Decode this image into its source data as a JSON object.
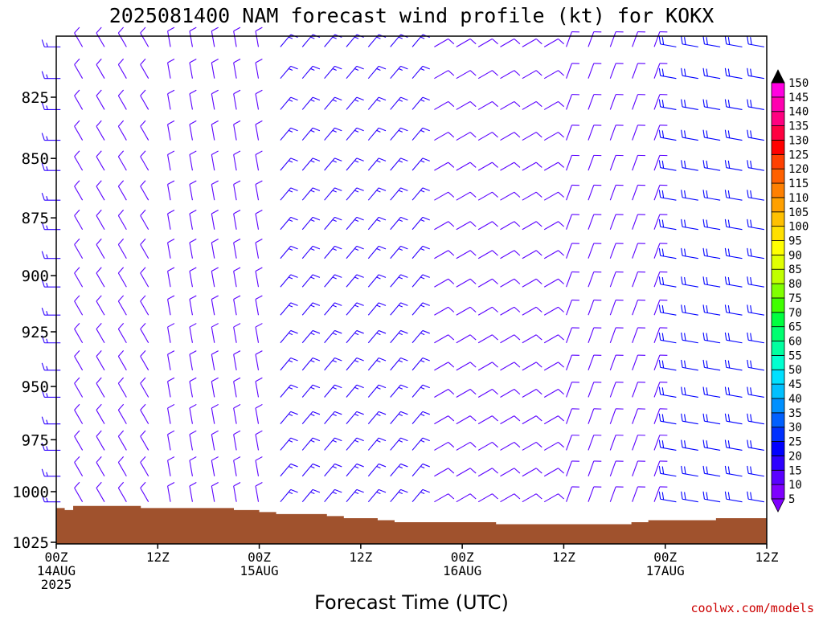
{
  "chart_data": {
    "type": "wind-barb-time-height",
    "title": "2025081400 NAM forecast wind profile (kt) for KOKX",
    "xlabel": "Forecast Time (UTC)",
    "ylabel": "",
    "x_ticks": [
      {
        "hour": 0,
        "line1": "00Z",
        "line2": "14AUG",
        "line3": "2025"
      },
      {
        "hour": 12,
        "line1": "12Z",
        "line2": "",
        "line3": ""
      },
      {
        "hour": 24,
        "line1": "00Z",
        "line2": "15AUG",
        "line3": ""
      },
      {
        "hour": 36,
        "line1": "12Z",
        "line2": "",
        "line3": ""
      },
      {
        "hour": 48,
        "line1": "00Z",
        "line2": "16AUG",
        "line3": ""
      },
      {
        "hour": 60,
        "line1": "12Z",
        "line2": "",
        "line3": ""
      },
      {
        "hour": 72,
        "line1": "00Z",
        "line2": "17AUG",
        "line3": ""
      },
      {
        "hour": 84,
        "line1": "12Z",
        "line2": "",
        "line3": ""
      }
    ],
    "xlim": [
      0,
      84
    ],
    "y_ticks": [
      825,
      850,
      875,
      900,
      925,
      950,
      975,
      1000,
      1025
    ],
    "ylim_hpa": [
      1025,
      800
    ],
    "log_pressure_axis": true,
    "grid": false,
    "colorbar": {
      "units": "kt",
      "levels": [
        5,
        10,
        15,
        20,
        25,
        30,
        35,
        40,
        45,
        50,
        55,
        60,
        65,
        70,
        75,
        80,
        85,
        90,
        95,
        100,
        105,
        110,
        115,
        120,
        125,
        130,
        135,
        140,
        145,
        150
      ],
      "colors": [
        "#7f00ff",
        "#5a00ff",
        "#2d00ff",
        "#0000ff",
        "#0030ff",
        "#0060ff",
        "#0090ff",
        "#00c0ff",
        "#00e0ff",
        "#00ffd0",
        "#00ffa0",
        "#00ff70",
        "#00ff40",
        "#40ff00",
        "#80ff00",
        "#c0ff00",
        "#e0ff00",
        "#ffff00",
        "#ffe000",
        "#ffc000",
        "#ffa000",
        "#ff8000",
        "#ff6000",
        "#ff4000",
        "#ff0000",
        "#ff0040",
        "#ff0080",
        "#ff00b0",
        "#ff00e0",
        "#ff40ff"
      ]
    },
    "ground_color": "#a0522d",
    "surface_pressure": [
      {
        "hour": 0,
        "p": 1008
      },
      {
        "hour": 1,
        "p": 1009
      },
      {
        "hour": 2,
        "p": 1007
      },
      {
        "hour": 8,
        "p": 1007
      },
      {
        "hour": 10,
        "p": 1008
      },
      {
        "hour": 11,
        "p": 1008
      },
      {
        "hour": 14,
        "p": 1008
      },
      {
        "hour": 16,
        "p": 1008
      },
      {
        "hour": 20,
        "p": 1008
      },
      {
        "hour": 21,
        "p": 1009
      },
      {
        "hour": 24,
        "p": 1010
      },
      {
        "hour": 26,
        "p": 1011
      },
      {
        "hour": 32,
        "p": 1012
      },
      {
        "hour": 34,
        "p": 1013
      },
      {
        "hour": 38,
        "p": 1014
      },
      {
        "hour": 40,
        "p": 1015
      },
      {
        "hour": 48,
        "p": 1015
      },
      {
        "hour": 52,
        "p": 1016
      },
      {
        "hour": 56,
        "p": 1016
      },
      {
        "hour": 60,
        "p": 1016
      },
      {
        "hour": 64,
        "p": 1016
      },
      {
        "hour": 68,
        "p": 1015
      },
      {
        "hour": 70,
        "p": 1014
      },
      {
        "hour": 76,
        "p": 1014
      },
      {
        "hour": 78,
        "p": 1013
      },
      {
        "hour": 84,
        "p": 1012
      }
    ],
    "wind_regimes": [
      {
        "from_hour": 0,
        "to_hour": 3,
        "direction_deg": 270,
        "speed_kt": 15,
        "note": "west"
      },
      {
        "from_hour": 3,
        "to_hour": 12,
        "direction_deg": 330,
        "speed_kt": 10,
        "note": "northwest"
      },
      {
        "from_hour": 12,
        "to_hour": 24,
        "direction_deg": 350,
        "speed_kt": 10,
        "note": "north"
      },
      {
        "from_hour": 24,
        "to_hour": 44,
        "direction_deg": 40,
        "speed_kt": 15,
        "note": "northeast"
      },
      {
        "from_hour": 44,
        "to_hour": 60,
        "direction_deg": 60,
        "speed_kt": 10,
        "note": "east-northeast"
      },
      {
        "from_hour": 60,
        "to_hour": 72,
        "direction_deg": 20,
        "speed_kt": 10,
        "note": "north-northeast"
      },
      {
        "from_hour": 72,
        "to_hour": 84,
        "direction_deg": 280,
        "speed_kt": 20,
        "note": "west"
      }
    ]
  },
  "footer": {
    "watermark": "coolwx.com/models",
    "watermark_color": "#cc0000"
  }
}
